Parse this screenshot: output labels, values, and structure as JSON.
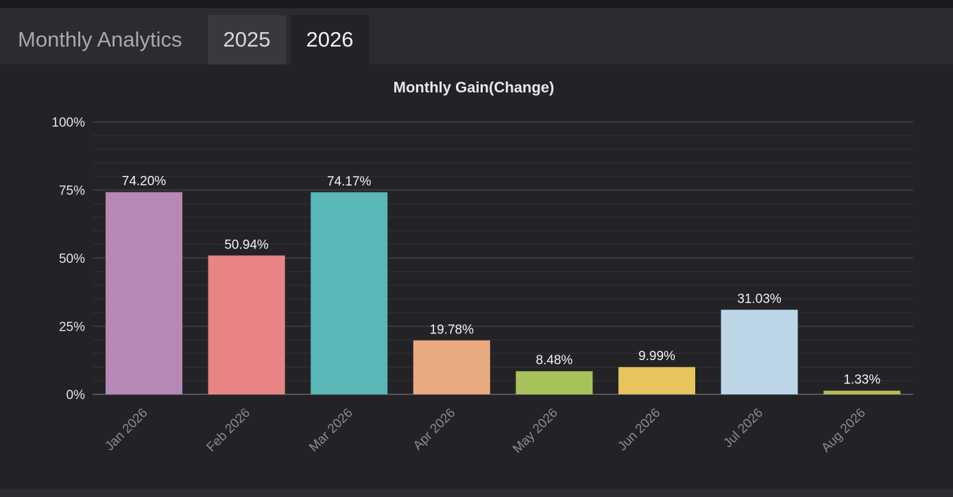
{
  "app": {
    "title": "Monthly Analytics"
  },
  "tabs": [
    {
      "label": "2025",
      "active": false
    },
    {
      "label": "2026",
      "active": true
    }
  ],
  "colors": {
    "background": "#232327",
    "gridline": "#3a3a40",
    "axis_text": "#e4e4e6",
    "title_text": "#e8e8ea",
    "xtick_text": "#8a8a90"
  },
  "chart_data": {
    "type": "bar",
    "title": "Monthly Gain(Change)",
    "xlabel": "",
    "ylabel": "",
    "ylim": [
      0,
      100
    ],
    "yticks": [
      0,
      25,
      50,
      75,
      100
    ],
    "ytick_labels": [
      "0%",
      "25%",
      "50%",
      "75%",
      "100%"
    ],
    "grid": true,
    "categories": [
      "Jan 2026",
      "Feb 2026",
      "Mar 2026",
      "Apr 2026",
      "May 2026",
      "Jun 2026",
      "Jul 2026",
      "Aug 2026"
    ],
    "values": [
      74.2,
      50.94,
      74.17,
      19.78,
      8.48,
      9.99,
      31.03,
      1.33
    ],
    "value_labels": [
      "74.20%",
      "50.94%",
      "74.17%",
      "19.78%",
      "8.48%",
      "9.99%",
      "31.03%",
      "1.33%"
    ],
    "bar_colors": [
      "#b688b6",
      "#e88584",
      "#5ab7b7",
      "#eaaa80",
      "#a7c25a",
      "#e6c45e",
      "#bdd6e6",
      "#b9bb58"
    ]
  }
}
